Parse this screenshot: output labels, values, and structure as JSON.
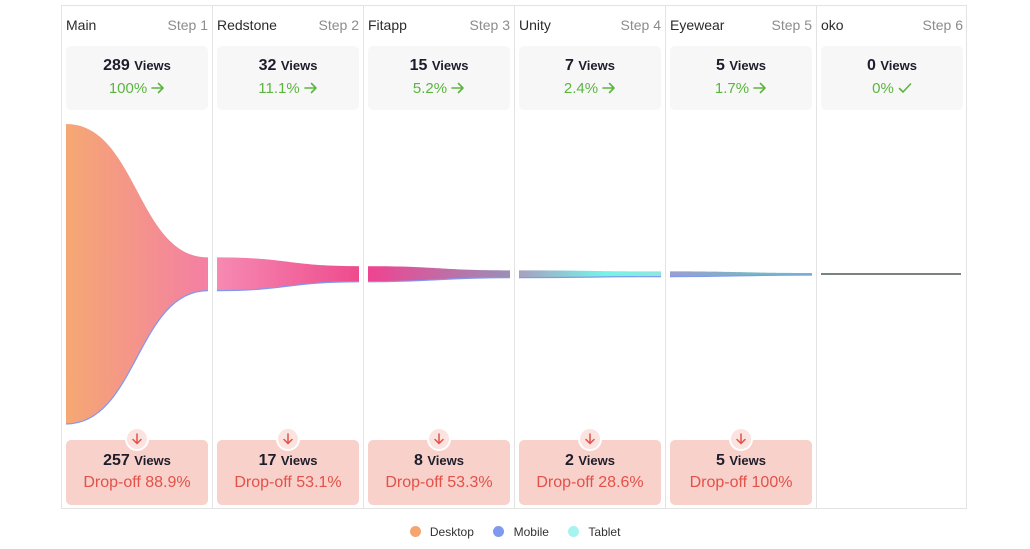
{
  "chart_data": {
    "type": "funnel",
    "unit_label": "Views",
    "steps": [
      {
        "name": "Main",
        "step_label": "Step 1",
        "views": 289,
        "conversion": "100%",
        "conversion_icon": "arrow-right-icon",
        "dropoff_views": 257,
        "dropoff_label": "Drop-off 88.9%"
      },
      {
        "name": "Redstone",
        "step_label": "Step 2",
        "views": 32,
        "conversion": "11.1%",
        "conversion_icon": "arrow-right-icon",
        "dropoff_views": 17,
        "dropoff_label": "Drop-off 53.1%"
      },
      {
        "name": "Fitapp",
        "step_label": "Step 3",
        "views": 15,
        "conversion": "5.2%",
        "conversion_icon": "arrow-right-icon",
        "dropoff_views": 8,
        "dropoff_label": "Drop-off 53.3%"
      },
      {
        "name": "Unity",
        "step_label": "Step 4",
        "views": 7,
        "conversion": "2.4%",
        "conversion_icon": "arrow-right-icon",
        "dropoff_views": 2,
        "dropoff_label": "Drop-off 28.6%"
      },
      {
        "name": "Eyewear",
        "step_label": "Step 5",
        "views": 5,
        "conversion": "1.7%",
        "conversion_icon": "arrow-right-icon",
        "dropoff_views": 5,
        "dropoff_label": "Drop-off 100%"
      },
      {
        "name": "oko",
        "step_label": "Step 6",
        "views": 0,
        "conversion": "0%",
        "conversion_icon": "check-icon",
        "dropoff_views": null,
        "dropoff_label": null
      }
    ],
    "legend": [
      {
        "name": "Desktop",
        "color": "#f5a66f"
      },
      {
        "name": "Mobile",
        "color": "#8099ee"
      },
      {
        "name": "Tablet",
        "color": "#a6f3ef"
      }
    ],
    "colors": {
      "conversion": "#5cb53f",
      "dropoff_text": "#e2514a",
      "dropoff_bg": "#f8d1ca",
      "flow_start": "#f5a66f",
      "flow_mid": "#f27ea6",
      "flow_pink": "#ef4d8f",
      "flow_teal": "#6df0e4"
    }
  }
}
